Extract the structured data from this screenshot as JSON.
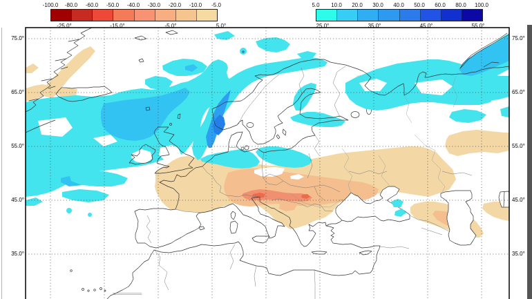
{
  "colorbars": {
    "negative": {
      "ticks": [
        "-100.0",
        "-80.0",
        "-60.0",
        "-50.0",
        "-40.0",
        "-30.0",
        "-20.0",
        "-10.0",
        "-5.0"
      ],
      "degrees": [
        "-25.0°",
        "-15.0°",
        "-5.0°",
        "5.0°"
      ],
      "colors": [
        "#a00000",
        "#c62a21",
        "#ee4838",
        "#f47b57",
        "#f79272",
        "#f8ae80",
        "#f6c48e",
        "#f5dba1"
      ]
    },
    "positive": {
      "ticks": [
        "5.0",
        "10.0",
        "20.0",
        "30.0",
        "40.0",
        "50.0",
        "60.0",
        "80.0",
        "100.0"
      ],
      "degrees": [
        "25.0°",
        "35.0°",
        "45.0°",
        "55.0°"
      ],
      "colors": [
        "#2cfce9",
        "#37cef6",
        "#2faef3",
        "#2e9aef",
        "#2b7beb",
        "#2153e6",
        "#1130cf",
        "#0b08a6"
      ]
    }
  },
  "map": {
    "lat_labels": [
      "75.0°",
      "65.0°",
      "55.0°",
      "45.0°",
      "35.0°"
    ],
    "palette": {
      "cyan": "#43e4ee",
      "mid_blue": "#32c3f3",
      "deep_blue": "#2d9ff0",
      "dark_spot": "#2380e8",
      "tan": "#f3d8a6",
      "orange": "#f4be8e",
      "salmon": "#f09070",
      "red": "#eb6b4f",
      "coast": "#333333",
      "grid": "#444444"
    }
  }
}
